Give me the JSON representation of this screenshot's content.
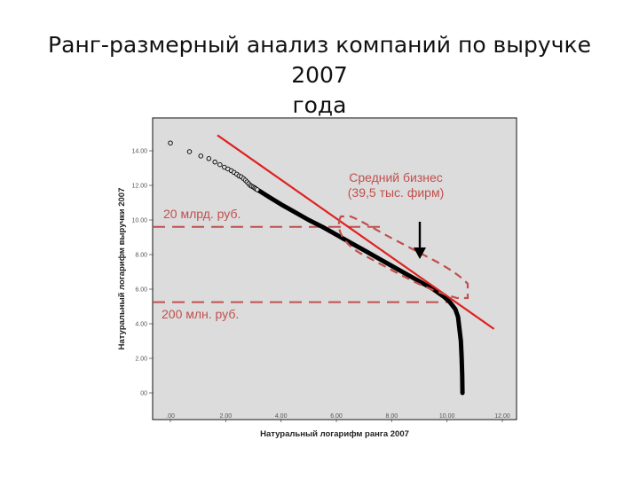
{
  "slide": {
    "title_line1": "Ранг-размерный анализ компаний по выручке 2007",
    "title_line2": "года"
  },
  "chart_data": {
    "type": "scatter",
    "xlabel": "Натуральный логарифм ранга 2007",
    "ylabel": "Натуральный логарифм выручки 2007",
    "xlim": [
      0,
      12
    ],
    "ylim": [
      0,
      15
    ],
    "x_ticks": [
      ".00",
      "2.00",
      "4.00",
      "6.00",
      "8.00",
      "10.00",
      "12.00"
    ],
    "y_ticks": [
      "00",
      "2.00",
      "4.00",
      "6.00",
      "8.00",
      "10.00",
      "12.00",
      "14.00"
    ],
    "grid": false,
    "series": [
      {
        "points": [
          [
            0.0,
            14.45
          ],
          [
            0.69,
            13.95
          ],
          [
            1.1,
            13.7
          ],
          [
            1.39,
            13.55
          ],
          [
            1.61,
            13.35
          ],
          [
            1.79,
            13.2
          ],
          [
            1.95,
            13.05
          ],
          [
            2.08,
            12.95
          ],
          [
            2.2,
            12.85
          ],
          [
            2.3,
            12.75
          ],
          [
            2.4,
            12.65
          ],
          [
            2.48,
            12.55
          ],
          [
            2.56,
            12.5
          ],
          [
            2.64,
            12.4
          ],
          [
            2.71,
            12.3
          ],
          [
            2.77,
            12.2
          ],
          [
            2.83,
            12.1
          ],
          [
            2.89,
            12.0
          ],
          [
            2.94,
            11.95
          ],
          [
            3.0,
            11.9
          ],
          [
            3.05,
            11.85
          ],
          [
            3.09,
            11.8
          ],
          [
            3.14,
            11.75
          ]
        ],
        "curve": [
          [
            3.2,
            11.7
          ],
          [
            3.6,
            11.3
          ],
          [
            4.0,
            10.9
          ],
          [
            4.5,
            10.45
          ],
          [
            5.0,
            10.0
          ],
          [
            5.5,
            9.6
          ],
          [
            6.0,
            9.15
          ],
          [
            6.5,
            8.7
          ],
          [
            7.0,
            8.25
          ],
          [
            7.5,
            7.8
          ],
          [
            8.0,
            7.35
          ],
          [
            8.5,
            6.9
          ],
          [
            9.0,
            6.45
          ],
          [
            9.5,
            6.0
          ],
          [
            9.9,
            5.55
          ],
          [
            10.1,
            5.25
          ],
          [
            10.3,
            4.85
          ],
          [
            10.4,
            4.4
          ],
          [
            10.45,
            3.7
          ],
          [
            10.5,
            3.0
          ],
          [
            10.53,
            2.0
          ],
          [
            10.55,
            1.0
          ],
          [
            10.56,
            0.0
          ]
        ]
      }
    ],
    "trend_line": [
      [
        1.7,
        14.9
      ],
      [
        11.7,
        3.7
      ]
    ],
    "reference_lines": [
      {
        "label": "20 млрд. руб.",
        "y": 9.6,
        "x_end": 7.6
      },
      {
        "label": "200 млн. руб.",
        "y": 5.25,
        "x_end": 10.1
      }
    ],
    "annotations": [
      {
        "label_line1": "Средний бизнес",
        "label_line2": "(39,5 тыс. фирм)"
      }
    ],
    "colors": {
      "background": "#dcdcdc",
      "markers": "#000000",
      "trend": "#e02020",
      "annotation": "#c0504d"
    }
  }
}
